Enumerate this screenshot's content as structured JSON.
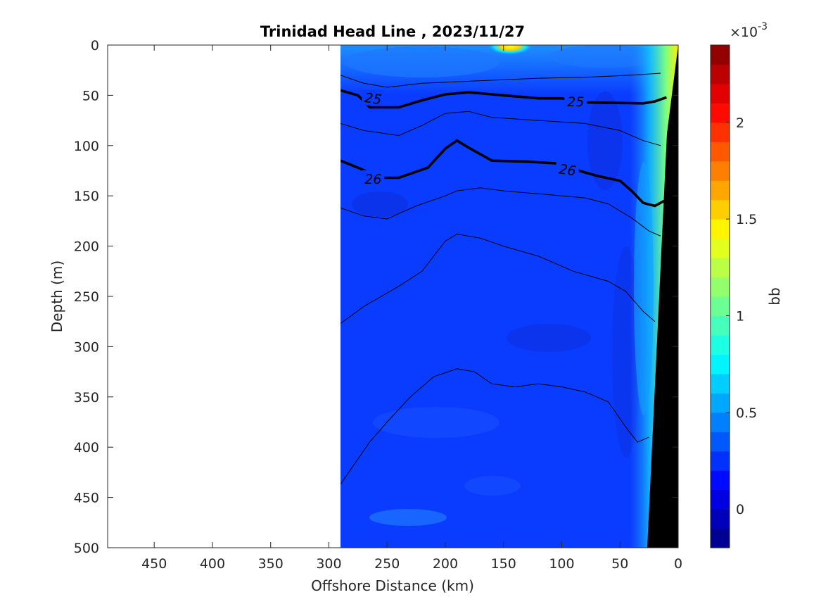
{
  "chart_data": {
    "type": "heatmap",
    "title": "Trinidad Head Line , 2023/11/27",
    "xlabel": "Offshore Distance (km)",
    "ylabel": "Depth (m)",
    "x_reversed": true,
    "y_reversed": true,
    "xlim": [
      490,
      0
    ],
    "ylim": [
      0,
      500
    ],
    "x_ticks": [
      "450",
      "400",
      "350",
      "300",
      "250",
      "200",
      "150",
      "100",
      "50",
      "0"
    ],
    "y_ticks": [
      "0",
      "50",
      "100",
      "150",
      "200",
      "250",
      "300",
      "350",
      "400",
      "450",
      "500"
    ],
    "data_extent_km": [
      290,
      0
    ],
    "colorbar": {
      "label": "bb",
      "multiplier": "×10",
      "multiplier_exponent": "-3",
      "ticks": [
        "0",
        "0.5",
        "1",
        "1.5",
        "2"
      ],
      "tick_values": [
        0,
        0.5,
        1,
        1.5,
        2
      ],
      "range": [
        -0.2,
        2.4
      ],
      "colormap": "jet"
    },
    "density_contours": [
      {
        "level": 25,
        "label": "25",
        "bold": true,
        "points": [
          [
            290,
            45
          ],
          [
            275,
            50
          ],
          [
            265,
            62
          ],
          [
            240,
            62
          ],
          [
            220,
            55
          ],
          [
            200,
            49
          ],
          [
            180,
            47
          ],
          [
            150,
            50
          ],
          [
            120,
            53
          ],
          [
            100,
            53
          ],
          [
            80,
            57
          ],
          [
            30,
            58
          ],
          [
            20,
            56
          ],
          [
            10,
            52
          ]
        ]
      },
      {
        "level": 26,
        "label": "26",
        "bold": true,
        "points": [
          [
            290,
            115
          ],
          [
            275,
            122
          ],
          [
            255,
            132
          ],
          [
            240,
            132
          ],
          [
            215,
            122
          ],
          [
            200,
            103
          ],
          [
            190,
            95
          ],
          [
            180,
            102
          ],
          [
            160,
            115
          ],
          [
            130,
            116
          ],
          [
            100,
            118
          ],
          [
            85,
            125
          ],
          [
            70,
            130
          ],
          [
            50,
            135
          ],
          [
            40,
            145
          ],
          [
            30,
            157
          ],
          [
            20,
            160
          ],
          [
            12,
            155
          ]
        ]
      },
      {
        "level": null,
        "label": "",
        "bold": false,
        "points": [
          [
            290,
            30
          ],
          [
            270,
            38
          ],
          [
            250,
            42
          ],
          [
            220,
            38
          ],
          [
            180,
            36
          ],
          [
            120,
            33
          ],
          [
            80,
            32
          ],
          [
            40,
            30
          ],
          [
            15,
            28
          ]
        ]
      },
      {
        "level": null,
        "label": "",
        "bold": false,
        "points": [
          [
            290,
            78
          ],
          [
            270,
            85
          ],
          [
            240,
            90
          ],
          [
            220,
            80
          ],
          [
            200,
            68
          ],
          [
            180,
            66
          ],
          [
            160,
            72
          ],
          [
            120,
            75
          ],
          [
            80,
            78
          ],
          [
            50,
            85
          ],
          [
            30,
            95
          ],
          [
            15,
            100
          ]
        ]
      },
      {
        "level": null,
        "label": "",
        "bold": false,
        "points": [
          [
            290,
            162
          ],
          [
            270,
            170
          ],
          [
            250,
            173
          ],
          [
            225,
            160
          ],
          [
            200,
            150
          ],
          [
            190,
            145
          ],
          [
            170,
            142
          ],
          [
            150,
            145
          ],
          [
            120,
            148
          ],
          [
            80,
            152
          ],
          [
            60,
            158
          ],
          [
            40,
            172
          ],
          [
            25,
            185
          ],
          [
            15,
            190
          ]
        ]
      },
      {
        "level": null,
        "label": "",
        "bold": false,
        "points": [
          [
            290,
            277
          ],
          [
            270,
            260
          ],
          [
            240,
            240
          ],
          [
            220,
            225
          ],
          [
            200,
            195
          ],
          [
            190,
            188
          ],
          [
            170,
            192
          ],
          [
            150,
            200
          ],
          [
            120,
            210
          ],
          [
            90,
            225
          ],
          [
            60,
            235
          ],
          [
            45,
            245
          ],
          [
            30,
            265
          ],
          [
            20,
            275
          ]
        ]
      },
      {
        "level": null,
        "label": "",
        "bold": false,
        "points": [
          [
            290,
            437
          ],
          [
            280,
            420
          ],
          [
            265,
            395
          ],
          [
            250,
            375
          ],
          [
            230,
            350
          ],
          [
            210,
            330
          ],
          [
            190,
            322
          ],
          [
            175,
            325
          ],
          [
            160,
            337
          ],
          [
            140,
            340
          ],
          [
            120,
            337
          ],
          [
            100,
            340
          ],
          [
            80,
            345
          ],
          [
            60,
            355
          ],
          [
            45,
            380
          ],
          [
            35,
            395
          ],
          [
            25,
            390
          ]
        ]
      }
    ]
  }
}
